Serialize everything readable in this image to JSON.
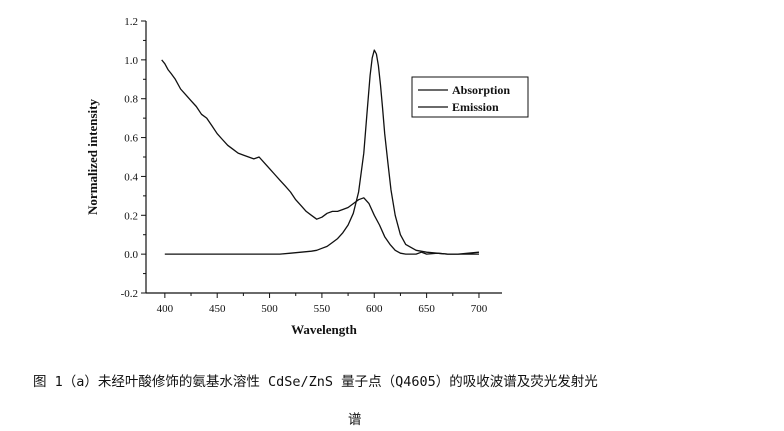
{
  "chart_data": {
    "type": "line",
    "title": "",
    "xlabel": "Wavelength",
    "ylabel": "Normalized intensity",
    "xlim": [
      382,
      722
    ],
    "ylim": [
      -0.2,
      1.2
    ],
    "x_ticks": [
      400,
      450,
      500,
      550,
      600,
      650,
      700
    ],
    "y_ticks": [
      -0.2,
      0.0,
      0.2,
      0.4,
      0.6,
      0.8,
      1.0,
      1.2
    ],
    "x_tick_labels": [
      "400",
      "450",
      "500",
      "550",
      "600",
      "650",
      "700"
    ],
    "y_tick_labels": [
      "-0.2",
      "0.0",
      "0.2",
      "0.4",
      "0.6",
      "0.8",
      "1.0",
      "1.2"
    ],
    "grid": false,
    "legend_position": "top-right",
    "series": [
      {
        "name": "Absorption",
        "color": "#111111",
        "x": [
          397,
          400,
          403,
          406,
          410,
          415,
          420,
          425,
          430,
          435,
          440,
          445,
          450,
          455,
          460,
          465,
          470,
          475,
          480,
          485,
          490,
          495,
          500,
          505,
          510,
          515,
          520,
          525,
          530,
          535,
          540,
          545,
          550,
          555,
          560,
          565,
          570,
          575,
          580,
          585,
          590,
          595,
          600,
          605,
          610,
          615,
          620,
          625,
          630,
          635,
          640,
          645,
          650,
          660,
          670,
          680,
          690,
          700
        ],
        "y": [
          1.0,
          0.98,
          0.95,
          0.93,
          0.9,
          0.85,
          0.82,
          0.79,
          0.76,
          0.72,
          0.7,
          0.66,
          0.62,
          0.59,
          0.56,
          0.54,
          0.52,
          0.51,
          0.5,
          0.49,
          0.5,
          0.47,
          0.44,
          0.41,
          0.38,
          0.35,
          0.32,
          0.28,
          0.25,
          0.22,
          0.2,
          0.18,
          0.19,
          0.21,
          0.22,
          0.22,
          0.23,
          0.24,
          0.26,
          0.28,
          0.29,
          0.26,
          0.2,
          0.15,
          0.09,
          0.05,
          0.02,
          0.005,
          0.0,
          0.0,
          0.0,
          0.01,
          0.0,
          0.005,
          0.0,
          0.0,
          0.005,
          0.01
        ]
      },
      {
        "name": "Emission",
        "color": "#111111",
        "x": [
          400,
          420,
          440,
          460,
          480,
          500,
          510,
          520,
          530,
          540,
          545,
          550,
          555,
          560,
          565,
          570,
          575,
          580,
          585,
          590,
          593,
          596,
          598,
          600,
          602,
          604,
          606,
          608,
          610,
          613,
          616,
          620,
          625,
          630,
          640,
          650,
          660,
          670,
          680,
          690,
          700
        ],
        "y": [
          0.0,
          0.0,
          0.0,
          0.0,
          0.0,
          0.0,
          0.0,
          0.005,
          0.01,
          0.015,
          0.02,
          0.03,
          0.04,
          0.06,
          0.08,
          0.11,
          0.15,
          0.21,
          0.32,
          0.52,
          0.72,
          0.92,
          1.01,
          1.05,
          1.03,
          0.97,
          0.87,
          0.75,
          0.62,
          0.47,
          0.33,
          0.2,
          0.1,
          0.05,
          0.02,
          0.01,
          0.005,
          0.0,
          0.0,
          0.0,
          0.0
        ]
      }
    ]
  },
  "caption": {
    "line1": "图 1（a）未经叶酸修饰的氨基水溶性 CdSe/ZnS 量子点（Q4605）的吸收波谱及荧光发射光",
    "line2": "谱"
  }
}
